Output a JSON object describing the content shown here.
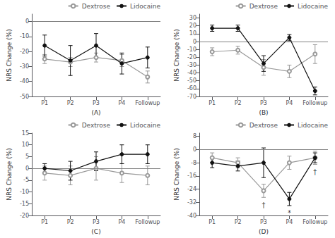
{
  "chart_data": [
    {
      "type": "line",
      "xlabel": "(A)",
      "ylabel": "NRS Change (%)",
      "categories": [
        "P1",
        "P2",
        "P3",
        "P4",
        "Followup"
      ],
      "series": [
        {
          "name": "Dextrose",
          "color": "#999999",
          "marker": "open_circle",
          "values": [
            -25,
            -27,
            -24,
            -26,
            -37
          ],
          "errors": [
            3,
            3,
            3,
            4,
            4
          ]
        },
        {
          "name": "Lidocaine",
          "color": "#111111",
          "marker": "circle",
          "values": [
            -16,
            -26,
            -16,
            -28,
            -24
          ],
          "errors": [
            7,
            10,
            8,
            7,
            7
          ]
        }
      ],
      "ylim": [
        -50,
        5
      ],
      "yticks": [
        0,
        -10,
        -20,
        -30,
        -40,
        -50
      ],
      "hline": 0,
      "grid": false,
      "legend": "upper right"
    },
    {
      "type": "line",
      "xlabel": "(B)",
      "ylabel": "NRS Change (%)",
      "categories": [
        "P1",
        "P2",
        "P3",
        "P4",
        "Followup"
      ],
      "series": [
        {
          "name": "Dextrose",
          "color": "#999999",
          "marker": "open_circle",
          "values": [
            -13,
            -11,
            -33,
            -38,
            -16
          ],
          "errors": [
            5,
            5,
            10,
            8,
            12
          ]
        },
        {
          "name": "Lidocaine",
          "color": "#111111",
          "marker": "circle",
          "values": [
            17,
            17,
            -28,
            5,
            -63
          ],
          "errors": [
            4,
            4,
            10,
            4,
            5
          ]
        }
      ],
      "ylim": [
        -70,
        35
      ],
      "yticks": [
        30,
        20,
        10,
        0,
        -10,
        -20,
        -30,
        -40,
        -50,
        -60,
        -70
      ],
      "hline": 0,
      "grid": false,
      "legend": "upper right"
    },
    {
      "type": "line",
      "xlabel": "(C)",
      "ylabel": "NRS Change (%)",
      "categories": [
        "P1",
        "P2",
        "P3",
        "P4",
        "Followup"
      ],
      "series": [
        {
          "name": "Dextrose",
          "color": "#999999",
          "marker": "open_circle",
          "values": [
            -2,
            -3,
            0,
            -2,
            -3
          ],
          "errors": [
            3,
            4,
            5,
            4,
            4
          ]
        },
        {
          "name": "Lidocaine",
          "color": "#111111",
          "marker": "circle",
          "values": [
            0,
            -1,
            3,
            6,
            6
          ],
          "errors": [
            2,
            4,
            4,
            4,
            4
          ]
        }
      ],
      "ylim": [
        -20,
        15
      ],
      "yticks": [
        15,
        10,
        5,
        0,
        -5,
        -10,
        -15,
        -20
      ],
      "hline": 0,
      "grid": false,
      "legend": "upper right"
    },
    {
      "type": "line",
      "xlabel": "(D)",
      "ylabel": "NRS Change (%)",
      "categories": [
        "P1",
        "P2",
        "P3",
        "P4",
        "Followup"
      ],
      "series": [
        {
          "name": "Dextrose",
          "color": "#999999",
          "marker": "open_circle",
          "values": [
            -5,
            -8,
            -25,
            -8,
            -5
          ],
          "errors": [
            3,
            3,
            4,
            4,
            4
          ]
        },
        {
          "name": "Lidocaine",
          "color": "#111111",
          "marker": "circle",
          "values": [
            -8,
            -10,
            -8,
            -30,
            -5
          ],
          "errors": [
            3,
            3,
            9,
            4,
            3
          ]
        }
      ],
      "ylim": [
        -40,
        10
      ],
      "yticks": [
        8,
        0,
        -8,
        -16,
        -24,
        -32,
        -40
      ],
      "hline": 0,
      "annotations": [
        {
          "x": "P3",
          "y": -31.5,
          "text": "†"
        },
        {
          "x": "P4",
          "y": -36.5,
          "text": "*"
        },
        {
          "x": "Followup",
          "y": -11.5,
          "text": "†"
        }
      ],
      "grid": false,
      "legend": "upper right"
    }
  ]
}
